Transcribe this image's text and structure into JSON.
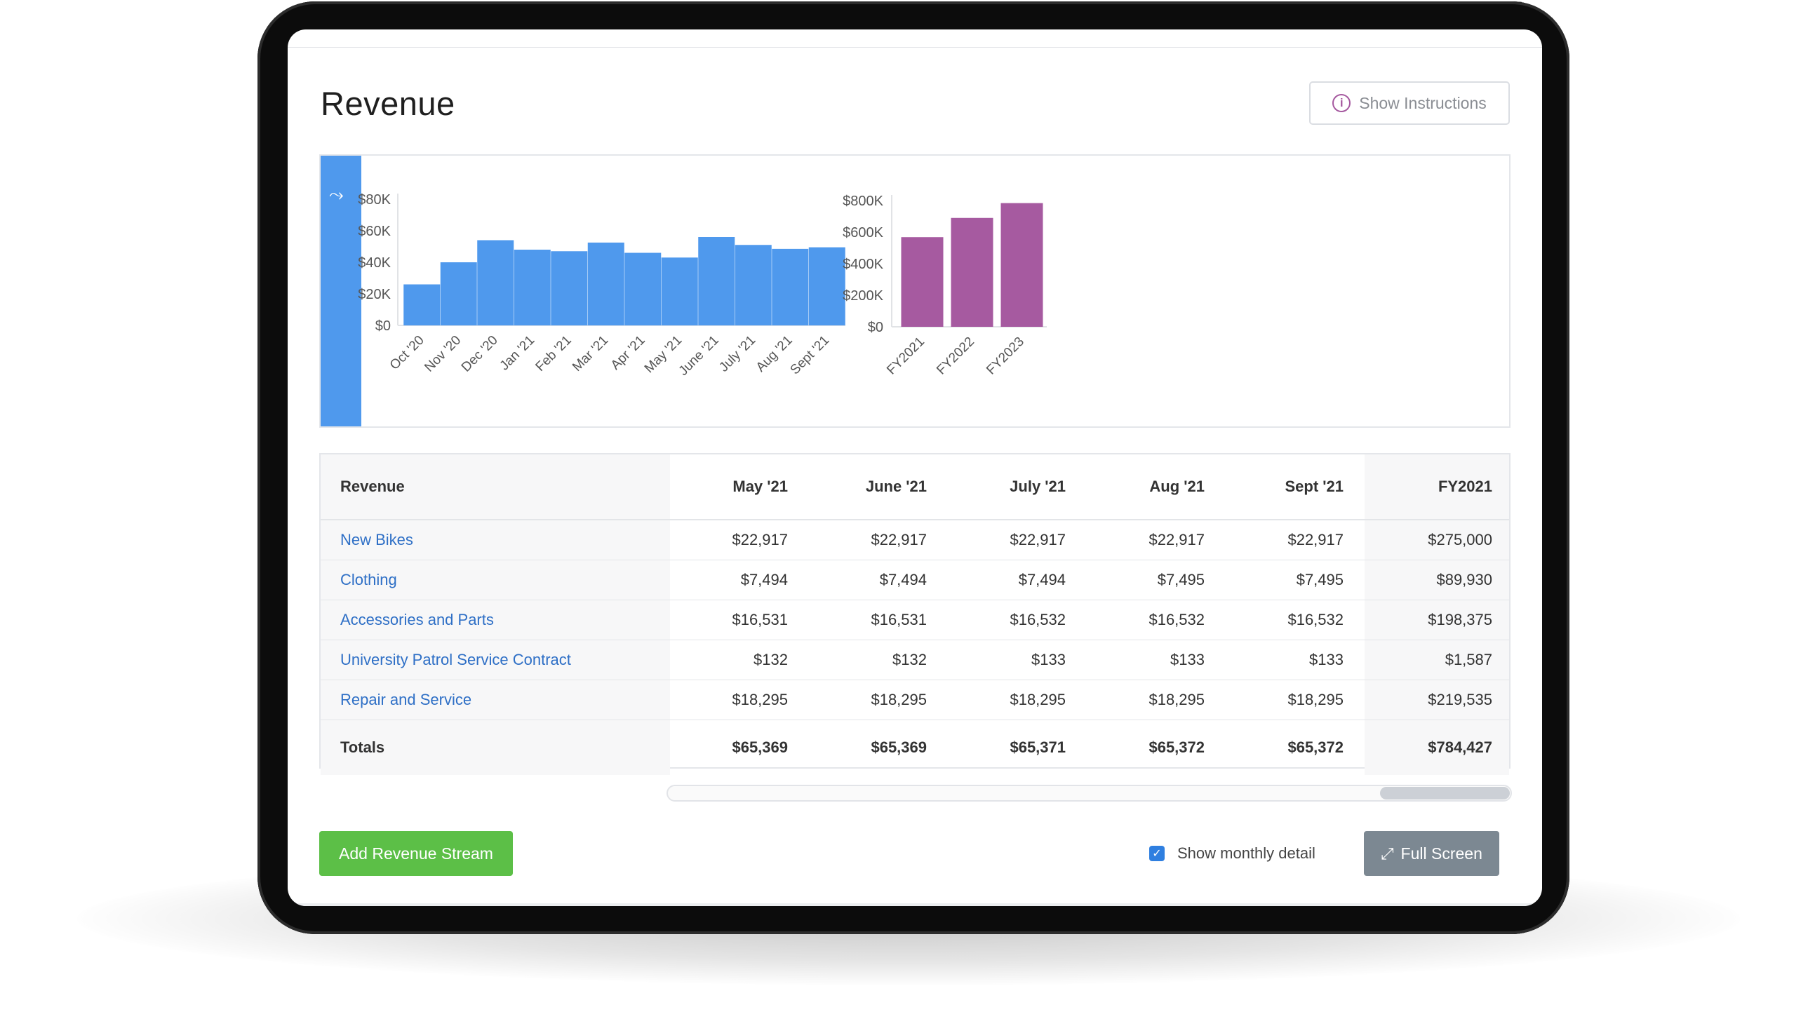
{
  "page": {
    "title": "Revenue"
  },
  "header": {
    "instructions_label": "Show Instructions",
    "instructions_icon": "info-icon"
  },
  "chart_side": {
    "icon": "trend-line-icon",
    "color": "#4f99ed"
  },
  "chart_data": [
    {
      "type": "bar",
      "title": "",
      "categories": [
        "Oct '20",
        "Nov '20",
        "Dec '20",
        "Jan '21",
        "Feb '21",
        "Mar '21",
        "Apr '21",
        "May '21",
        "June '21",
        "July '21",
        "Aug '21",
        "Sept '21"
      ],
      "values": [
        26000,
        40000,
        54000,
        48000,
        47000,
        52500,
        46000,
        43000,
        56000,
        51000,
        48500,
        49500
      ],
      "ylim": [
        0,
        80000
      ],
      "yticks": [
        "$0",
        "$20K",
        "$40K",
        "$60K",
        "$80K"
      ],
      "color": "#4f99ed"
    },
    {
      "type": "bar",
      "title": "",
      "categories": [
        "FY2021",
        "FY2022",
        "FY2023"
      ],
      "values": [
        568000,
        690000,
        784000
      ],
      "ylim": [
        0,
        800000
      ],
      "yticks": [
        "$0",
        "$200K",
        "$400K",
        "$600K",
        "$800K"
      ],
      "color": "#a65aa0"
    }
  ],
  "table": {
    "headers": [
      "Revenue",
      "May '21",
      "June '21",
      "July '21",
      "Aug '21",
      "Sept '21",
      "FY2021"
    ],
    "rows": [
      {
        "name": "New Bikes",
        "values": [
          "$22,917",
          "$22,917",
          "$22,917",
          "$22,917",
          "$22,917",
          "$275,000"
        ]
      },
      {
        "name": "Clothing",
        "values": [
          "$7,494",
          "$7,494",
          "$7,494",
          "$7,495",
          "$7,495",
          "$89,930"
        ]
      },
      {
        "name": "Accessories and Parts",
        "values": [
          "$16,531",
          "$16,531",
          "$16,532",
          "$16,532",
          "$16,532",
          "$198,375"
        ]
      },
      {
        "name": "University Patrol Service Contract",
        "values": [
          "$132",
          "$132",
          "$133",
          "$133",
          "$133",
          "$1,587"
        ]
      },
      {
        "name": "Repair and Service",
        "values": [
          "$18,295",
          "$18,295",
          "$18,295",
          "$18,295",
          "$18,295",
          "$219,535"
        ]
      }
    ],
    "totals": {
      "name": "Totals",
      "values": [
        "$65,369",
        "$65,369",
        "$65,371",
        "$65,372",
        "$65,372",
        "$784,427"
      ]
    }
  },
  "footer": {
    "add_label": "Add Revenue Stream",
    "monthly_label": "Show monthly detail",
    "monthly_checked": true,
    "fullscreen_label": "Full Screen",
    "fullscreen_icon": "expand-icon"
  },
  "colors": {
    "accent_blue": "#4f99ed",
    "accent_purple": "#a65aa0",
    "green": "#5cbf47",
    "link": "#2e6fc6"
  }
}
